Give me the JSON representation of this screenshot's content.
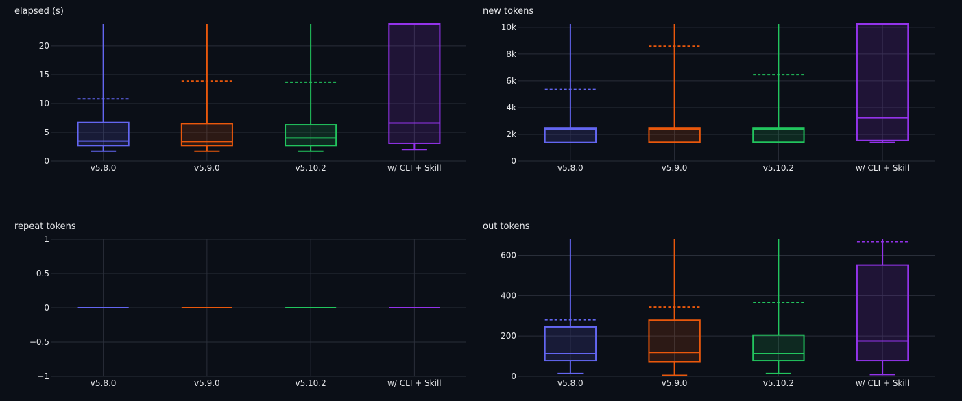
{
  "chart_data": [
    {
      "type": "box",
      "title": "elapsed (s)",
      "categories": [
        "v5.8.0",
        "v5.9.0",
        "v5.10.2",
        "w/ CLI + Skill"
      ],
      "ylim": [
        0,
        23.8
      ],
      "yticks": [
        0,
        5,
        10,
        15,
        20
      ],
      "ytick_labels": [
        "0",
        "5",
        "10",
        "15",
        "20"
      ],
      "grid": true,
      "series": [
        {
          "color": "#6366f1",
          "min": 1.7,
          "q1": 2.7,
          "median": 3.5,
          "q3": 6.7,
          "max": 23.8,
          "mean": 10.8
        },
        {
          "color": "#ea580c",
          "min": 1.7,
          "q1": 2.7,
          "median": 3.4,
          "q3": 6.5,
          "max": 23.8,
          "mean": 13.9
        },
        {
          "color": "#22c55e",
          "min": 1.7,
          "q1": 2.7,
          "median": 4.0,
          "q3": 6.3,
          "max": 23.8,
          "mean": 13.7
        },
        {
          "color": "#9333ea",
          "min": 2.0,
          "q1": 3.1,
          "median": 6.6,
          "q3": 23.8,
          "max": 23.8,
          "mean": null
        }
      ]
    },
    {
      "type": "box",
      "title": "new tokens",
      "categories": [
        "v5.8.0",
        "v5.9.0",
        "v5.10.2",
        "w/ CLI + Skill"
      ],
      "ylim": [
        0,
        10250
      ],
      "yticks": [
        0,
        2000,
        4000,
        6000,
        8000,
        10000
      ],
      "ytick_labels": [
        "0",
        "2k",
        "4k",
        "6k",
        "8k",
        "10k"
      ],
      "grid": true,
      "series": [
        {
          "color": "#6366f1",
          "min": 1400,
          "q1": 1400,
          "median": 2400,
          "q3": 2450,
          "max": 10250,
          "mean": 5350
        },
        {
          "color": "#ea580c",
          "min": 1400,
          "q1": 1420,
          "median": 2400,
          "q3": 2450,
          "max": 10250,
          "mean": 8600
        },
        {
          "color": "#22c55e",
          "min": 1400,
          "q1": 1420,
          "median": 2400,
          "q3": 2450,
          "max": 10250,
          "mean": 6450
        },
        {
          "color": "#9333ea",
          "min": 1400,
          "q1": 1550,
          "median": 3250,
          "q3": 10250,
          "max": 10250,
          "mean": null
        }
      ]
    },
    {
      "type": "box",
      "title": "repeat tokens",
      "categories": [
        "v5.8.0",
        "v5.9.0",
        "v5.10.2",
        "w/ CLI + Skill"
      ],
      "ylim": [
        -1,
        1
      ],
      "yticks": [
        -1,
        -0.5,
        0,
        0.5,
        1
      ],
      "ytick_labels": [
        "−1",
        "−0.5",
        "0",
        "0.5",
        "1"
      ],
      "grid": true,
      "series": [
        {
          "color": "#6366f1",
          "min": 0,
          "q1": 0,
          "median": 0,
          "q3": 0,
          "max": 0,
          "mean": null
        },
        {
          "color": "#ea580c",
          "min": 0,
          "q1": 0,
          "median": 0,
          "q3": 0,
          "max": 0,
          "mean": null
        },
        {
          "color": "#22c55e",
          "min": 0,
          "q1": 0,
          "median": 0,
          "q3": 0,
          "max": 0,
          "mean": null
        },
        {
          "color": "#9333ea",
          "min": 0,
          "q1": 0,
          "median": 0,
          "q3": 0,
          "max": 0,
          "mean": null
        }
      ]
    },
    {
      "type": "box",
      "title": "out tokens",
      "categories": [
        "v5.8.0",
        "v5.9.0",
        "v5.10.2",
        "w/ CLI + Skill"
      ],
      "ylim": [
        0,
        680
      ],
      "yticks": [
        0,
        200,
        400,
        600
      ],
      "ytick_labels": [
        "0",
        "200",
        "400",
        "600"
      ],
      "grid": true,
      "series": [
        {
          "color": "#6366f1",
          "min": 14,
          "q1": 78,
          "median": 112,
          "q3": 245,
          "max": 680,
          "mean": 280
        },
        {
          "color": "#ea580c",
          "min": 5,
          "q1": 73,
          "median": 118,
          "q3": 278,
          "max": 680,
          "mean": 343
        },
        {
          "color": "#22c55e",
          "min": 14,
          "q1": 78,
          "median": 112,
          "q3": 205,
          "max": 680,
          "mean": 367
        },
        {
          "color": "#9333ea",
          "min": 9,
          "q1": 78,
          "median": 175,
          "q3": 552,
          "max": 680,
          "mean": 668
        }
      ]
    }
  ]
}
